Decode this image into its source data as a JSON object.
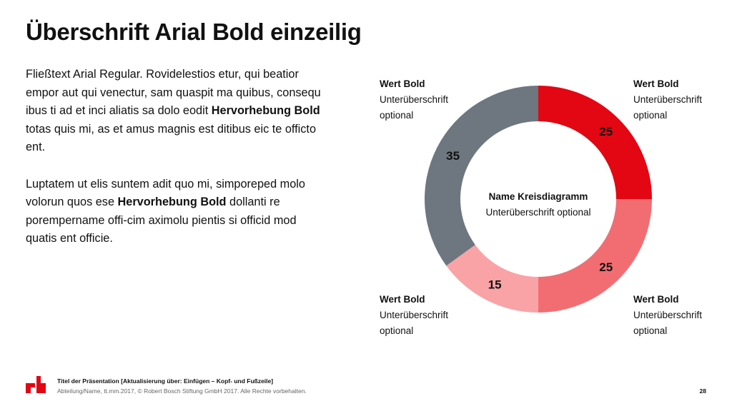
{
  "title": "Überschrift Arial Bold einzeilig",
  "body": {
    "p1_a": "Fließtext Arial Regular. Rovidelestios etur, qui beatior empor aut qui venectur, sam quaspit ma quibus, consequ ibus ti ad et inci aliatis sa dolo eodit ",
    "p1_bold": "Hervorhebung Bold",
    "p1_b": " totas quis mi, as et amus magnis est ditibus eic te officto ent.",
    "p2_a": "Luptatem ut elis suntem adit quo mi, simporeped molo volorun quos ese ",
    "p2_bold": "Hervorhebung Bold",
    "p2_b": " dollanti re porempername offi-cim aximolu pientis si officid mod quatis ent officie."
  },
  "corners": {
    "top_left": {
      "value": "Wert Bold",
      "sub1": "Unterüberschrift",
      "sub2": "optional"
    },
    "top_right": {
      "value": "Wert Bold",
      "sub1": "Unterüberschrift",
      "sub2": "optional"
    },
    "bottom_left": {
      "value": "Wert Bold",
      "sub1": "Unterüberschrift",
      "sub2": "optional"
    },
    "bottom_right": {
      "value": "Wert Bold",
      "sub1": "Unterüberschrift",
      "sub2": "optional"
    }
  },
  "chart_data": {
    "type": "pie",
    "style": "donut",
    "title": "Name Kreisdiagramm",
    "subtitle": "Unterüberschrift optional",
    "slices": [
      {
        "value": 25,
        "label": "25",
        "color": "#e30613"
      },
      {
        "value": 25,
        "label": "25",
        "color": "#f26d72"
      },
      {
        "value": 15,
        "label": "15",
        "color": "#f9a3a6"
      },
      {
        "value": 35,
        "label": "35",
        "color": "#6e7780"
      }
    ]
  },
  "footer": {
    "line1": "Titel der Präsentation [Aktualisierung über: Einfügen – Kopf- und Fußzeile]",
    "line2": "Abteilung/Name, tt.mm.2017, © Robert Bosch Stiftung GmbH 2017. Alle Rechte vorbehalten.",
    "page": "28"
  },
  "logo_text": "rb"
}
